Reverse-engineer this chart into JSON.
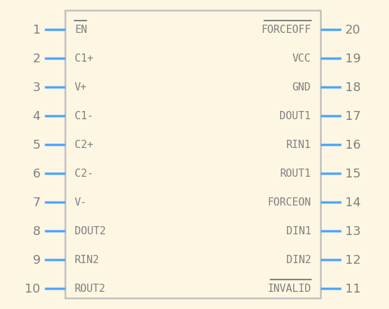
{
  "bg_color": "#fdf6e3",
  "box_color": "#c0c0c0",
  "pin_color": "#4da6ff",
  "text_color": "#808080",
  "num_color": "#808080",
  "left_pins": [
    {
      "num": 1,
      "label": "EN",
      "overline": true
    },
    {
      "num": 2,
      "label": "C1+",
      "overline": false
    },
    {
      "num": 3,
      "label": "V+",
      "overline": false
    },
    {
      "num": 4,
      "label": "C1-",
      "overline": false
    },
    {
      "num": 5,
      "label": "C2+",
      "overline": false
    },
    {
      "num": 6,
      "label": "C2-",
      "overline": false
    },
    {
      "num": 7,
      "label": "V-",
      "overline": false
    },
    {
      "num": 8,
      "label": "DOUT2",
      "overline": false
    },
    {
      "num": 9,
      "label": "RIN2",
      "overline": false
    },
    {
      "num": 10,
      "label": "ROUT2",
      "overline": false
    }
  ],
  "right_pins": [
    {
      "num": 20,
      "label": "FORCEOFF",
      "overline": true
    },
    {
      "num": 19,
      "label": "VCC",
      "overline": false
    },
    {
      "num": 18,
      "label": "GND",
      "overline": false
    },
    {
      "num": 17,
      "label": "DOUT1",
      "overline": false
    },
    {
      "num": 16,
      "label": "RIN1",
      "overline": false
    },
    {
      "num": 15,
      "label": "ROUT1",
      "overline": false
    },
    {
      "num": 14,
      "label": "FORCEON",
      "overline": false
    },
    {
      "num": 13,
      "label": "DIN1",
      "overline": false
    },
    {
      "num": 12,
      "label": "DIN2",
      "overline": false
    },
    {
      "num": 11,
      "label": "INVALID",
      "overline": true
    }
  ]
}
